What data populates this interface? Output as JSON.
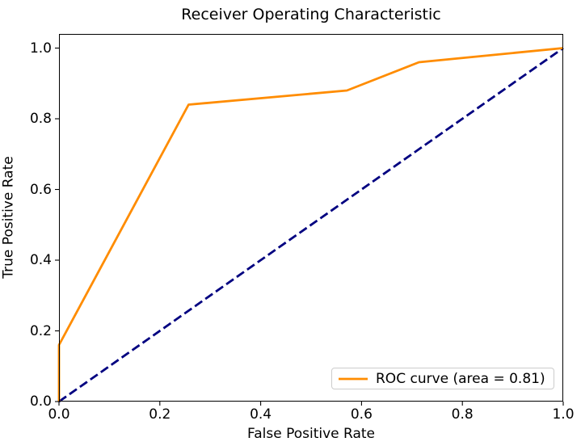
{
  "figure": {
    "background": "#ffffff"
  },
  "chart_data": {
    "type": "line",
    "title": "Receiver Operating Characteristic",
    "xlabel": "False Positive Rate",
    "ylabel": "True Positive Rate",
    "xlim": [
      0.0,
      1.0
    ],
    "ylim": [
      0.0,
      1.04
    ],
    "x_ticks": [
      "0.0",
      "0.2",
      "0.4",
      "0.6",
      "0.8",
      "1.0"
    ],
    "y_ticks": [
      "0.0",
      "0.2",
      "0.4",
      "0.6",
      "0.8",
      "1.0"
    ],
    "grid": false,
    "legend_position": "lower right",
    "auc": 0.81,
    "series": [
      {
        "name": "ROC curve (area = 0.81)",
        "color": "#ff8c00",
        "style": "solid",
        "line_width": 2.8,
        "x": [
          0.0,
          0.0,
          0.257,
          0.571,
          0.714,
          1.0
        ],
        "y": [
          0.0,
          0.16,
          0.84,
          0.88,
          0.96,
          1.0
        ]
      },
      {
        "name": "chance diagonal",
        "color": "#000080",
        "style": "dashed",
        "line_width": 2.8,
        "x": [
          0.0,
          1.0
        ],
        "y": [
          0.0,
          1.0
        ]
      }
    ]
  },
  "legend": {
    "label": "ROC curve (area = 0.81)"
  },
  "colors": {
    "roc_curve": "#ff8c00",
    "chance_line": "#000080",
    "axis": "#000000",
    "legend_border": "#cccccc"
  }
}
